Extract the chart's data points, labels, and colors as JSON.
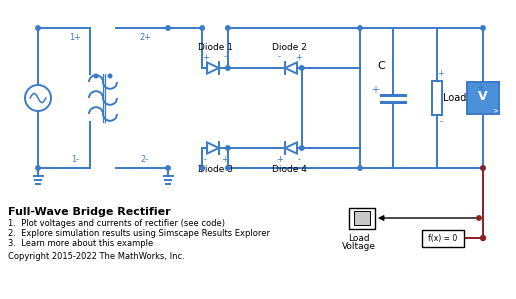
{
  "circuit_color": "#3A7AC8",
  "bg_color": "#FFFFFF",
  "red_wire_color": "#8B2020",
  "labels": {
    "diode1": "Diode 1",
    "diode2": "Diode 2",
    "diode3": "Diode 3",
    "diode4": "Diode 4",
    "cap": "C",
    "load": "Load",
    "node1p": "1+",
    "node1m": "1-",
    "node2p": "2+",
    "node2m": "2-",
    "load_voltage_1": "Load",
    "load_voltage_2": "Voltage"
  },
  "footer_title": "Full-Wave Bridge Rectifier",
  "footer_items": [
    "1.  Plot voltages and currents of rectifier (see code)",
    "2.  Explore simulation results using Simscape Results Explorer",
    "3.  Learn more about this example"
  ],
  "copyright": "Copyright 2015-2022 The MathWorks, Inc."
}
